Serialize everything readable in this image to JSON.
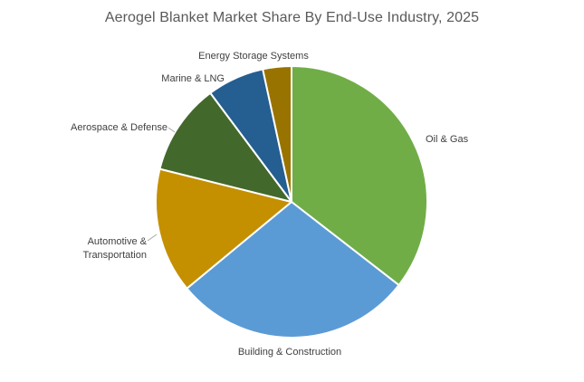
{
  "chart_data": {
    "type": "pie",
    "title": "Aerogel Blanket Market Share By End-Use Industry, 2025",
    "categories": [
      "Oil & Gas",
      "Building & Construction",
      "Automotive & Transportation",
      "Aerospace & Defense",
      "Marine & LNG",
      "Energy Storage Systems"
    ],
    "values": [
      35.5,
      28.5,
      14.9,
      10.9,
      6.8,
      3.4
    ],
    "colors": [
      "#70ad47",
      "#5b9bd5",
      "#c49000",
      "#43682b",
      "#255e91",
      "#997300"
    ],
    "legend": "none",
    "start_angle_deg": 0,
    "direction": "clockwise"
  }
}
